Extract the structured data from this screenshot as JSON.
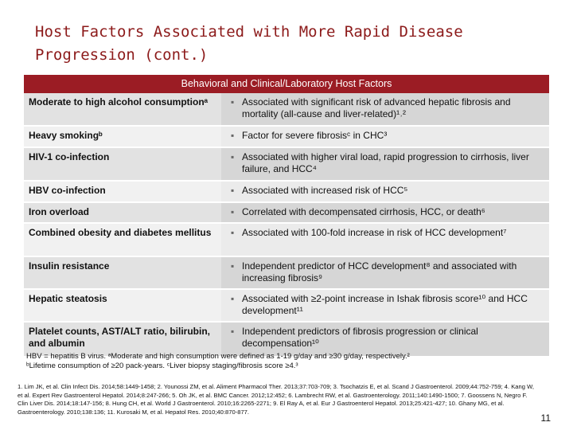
{
  "title": "Host Factors Associated with More Rapid Disease Progression (cont.)",
  "table": {
    "header": "Behavioral and Clinical/Laboratory Host Factors",
    "rows": [
      {
        "factor": "Moderate to high alcohol consumptionᵃ",
        "detail": "Associated with significant risk of advanced hepatic fibrosis and mortality (all-cause and liver-related)¹˒²"
      },
      {
        "factor": "Heavy smokingᵇ",
        "detail": "Factor for severe fibrosisᶜ in CHC³"
      },
      {
        "factor": "HIV-1 co-infection",
        "detail": "Associated with higher viral load, rapid progression to cirrhosis, liver failure, and HCC⁴"
      },
      {
        "factor": "HBV co-infection",
        "detail": "Associated with increased risk of HCC⁵"
      },
      {
        "factor": "Iron overload",
        "detail": "Correlated with decompensated cirrhosis, HCC, or death⁶"
      },
      {
        "factor": "Combined obesity and diabetes mellitus",
        "detail": "Associated with 100-fold increase in risk of HCC development⁷"
      },
      {
        "factor": "Insulin resistance",
        "detail": "Independent predictor of HCC development⁸ and associated with increasing fibrosis⁹"
      },
      {
        "factor": "Hepatic steatosis",
        "detail": "Associated with ≥2-point increase in Ishak fibrosis score¹⁰ and HCC development¹¹"
      },
      {
        "factor": "Platelet counts, AST/ALT ratio, bilirubin, and albumin",
        "detail": "Independent predictors of fibrosis progression or clinical decompensation¹⁰"
      }
    ]
  },
  "footnotes": {
    "line1": "HBV = hepatitis B virus. ᵃModerate and high consumption were defined as 1-19 g/day and ≥30 g/day, respectively.²",
    "line2": "ᵇLifetime consumption of ≥20 pack-years. ᶜLiver biopsy staging/fibrosis score ≥4.³"
  },
  "references": "1. Lim JK, et al. Clin Infect Dis. 2014;58:1449-1458; 2. Younossi ZM, et al. Aliment Pharmacol Ther. 2013;37:703-709; 3. Tsochatzis E, et al. Scand J Gastroenterol. 2009;44:752-759; 4. Kang W, et al. Expert Rev Gastroenterol Hepatol. 2014;8:247-266; 5. Oh JK, et al. BMC Cancer. 2012;12:452; 6. Lambrecht RW, et al. Gastroenterology. 2011;140:1490-1500; 7. Goossens N, Negro F. Clin Liver Dis. 2014;18:147-156; 8. Hung CH, et al. World J Gastroenterol. 2010;16:2265-2271; 9. El Ray A, et al. Eur J Gastroenterol Hepatol. 2013;25:421-427; 10. Ghany MG, et al. Gastroenterology. 2010;138:136; 11. Kurosaki M, et al. Hepatol Res. 2010;40:870-877.",
  "page_number": "11",
  "bullet": "▪"
}
